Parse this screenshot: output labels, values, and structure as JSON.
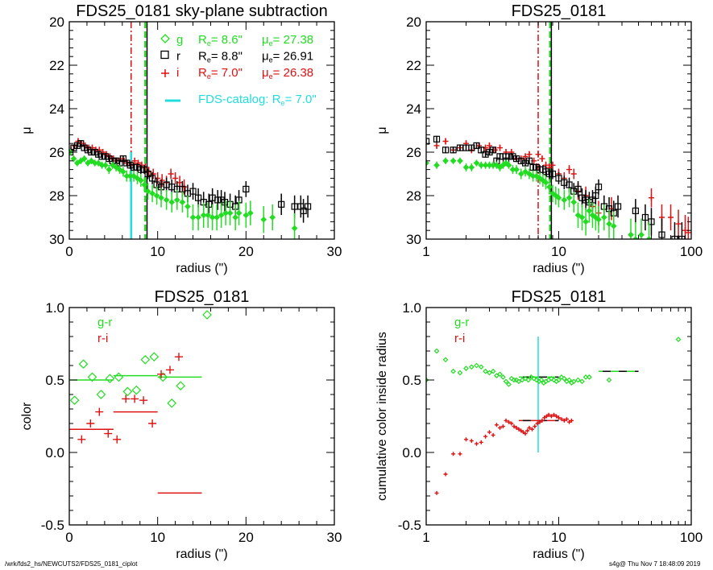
{
  "footer": {
    "left": "/wrk/fds2_hs/NEWCUTS2/FDS25_0181_ciplot",
    "right": "s4g@  Thu Nov  7 18:48:09 2019"
  },
  "colors": {
    "g": "#22dd22",
    "r": "#000000",
    "i": "#dd1111",
    "catalog": "#22dddd"
  },
  "chart_data": [
    {
      "id": "profile-linear",
      "type": "scatter",
      "title": "FDS25_0181 sky-plane subtraction",
      "xlabel": "radius (\")",
      "ylabel": "μ",
      "xscale": "linear",
      "xlim": [
        0,
        30
      ],
      "ylim": [
        30,
        20
      ],
      "xticks": [
        0,
        10,
        20,
        30
      ],
      "yticks": [
        20,
        22,
        24,
        26,
        28,
        30
      ],
      "legend": {
        "placement": "top-right",
        "entries": [
          {
            "band": "g",
            "symbol": "◇",
            "label": "g",
            "re": "8.6\"",
            "mue": "27.38"
          },
          {
            "band": "r",
            "symbol": "□",
            "label": "r",
            "re": "8.8\"",
            "mue": "26.91"
          },
          {
            "band": "i",
            "symbol": "+",
            "label": "i",
            "re": "7.0\"",
            "mue": "26.38"
          }
        ],
        "catalog": "FDS-catalog: R",
        "catalog_re": "7.0\"",
        "re_prefix": "R",
        "mue_prefix": "μ",
        "eq": "="
      },
      "vlines": [
        {
          "x": 7.0,
          "color": "i",
          "style": "dashdot"
        },
        {
          "x": 8.6,
          "color": "g",
          "style": "dashed"
        },
        {
          "x": 8.8,
          "color": "r",
          "style": "solid"
        },
        {
          "x": 7.0,
          "color": "catalog",
          "style": "solid",
          "ymin": 26.0,
          "ymax": 30
        }
      ],
      "series": [
        {
          "name": "i",
          "x": [
            0.2,
            0.6,
            1.0,
            1.4,
            1.8,
            2.2,
            2.6,
            3.0,
            3.4,
            3.8,
            4.2,
            4.6,
            5.0,
            5.4,
            5.8,
            6.2,
            6.6,
            7.0,
            7.4,
            7.8,
            8.2,
            8.6,
            9.0,
            9.5,
            10.0,
            10.5,
            11.0,
            11.5,
            12.0,
            12.5,
            13.0
          ],
          "y": [
            25.9,
            25.7,
            25.5,
            25.6,
            25.7,
            25.8,
            25.8,
            25.9,
            25.9,
            26.0,
            26.1,
            26.2,
            26.3,
            26.4,
            26.3,
            26.4,
            26.5,
            26.6,
            26.4,
            26.5,
            26.6,
            26.7,
            26.9,
            27.0,
            27.2,
            27.3,
            27.4,
            27.0,
            27.2,
            27.4,
            27.6
          ]
        },
        {
          "name": "r",
          "x": [
            0.1,
            0.5,
            0.9,
            1.3,
            1.7,
            2.1,
            2.5,
            2.9,
            3.3,
            3.7,
            4.1,
            4.5,
            4.9,
            5.3,
            5.7,
            6.1,
            6.5,
            6.9,
            7.3,
            7.7,
            8.1,
            8.5,
            8.9,
            9.4,
            9.9,
            10.4,
            11.0,
            11.6,
            12.2,
            12.8,
            13.4,
            14.0,
            14.6,
            15.2,
            15.8,
            16.2,
            16.8,
            17.2,
            17.6,
            18.2,
            18.8,
            19.2,
            20.0,
            24.0,
            25.5,
            26.2,
            26.5,
            27.0
          ],
          "y": [
            26.0,
            25.8,
            25.7,
            25.6,
            25.8,
            25.9,
            26.0,
            26.0,
            26.1,
            26.2,
            26.2,
            26.3,
            26.4,
            26.4,
            26.5,
            26.3,
            26.5,
            26.6,
            26.7,
            26.7,
            26.8,
            26.8,
            27.0,
            27.2,
            27.5,
            27.6,
            27.5,
            27.6,
            27.7,
            27.7,
            27.9,
            27.8,
            28.1,
            28.3,
            28.4,
            28.1,
            28.2,
            28.2,
            28.3,
            28.4,
            28.5,
            28.2,
            27.7,
            28.4,
            28.5,
            28.5,
            28.7,
            28.5
          ]
        },
        {
          "name": "g",
          "x": [
            0.1,
            0.5,
            0.9,
            1.3,
            1.7,
            2.1,
            2.5,
            2.9,
            3.3,
            3.7,
            4.1,
            4.5,
            4.9,
            5.3,
            5.7,
            6.1,
            6.5,
            6.9,
            7.3,
            7.7,
            8.1,
            8.5,
            8.9,
            9.4,
            9.9,
            10.4,
            11.0,
            11.6,
            12.2,
            12.8,
            13.4,
            14.0,
            14.6,
            15.2,
            15.7,
            16.2,
            16.7,
            17.2,
            17.7,
            18.2,
            18.8,
            19.2,
            20.0,
            20.5,
            22.0,
            23.0,
            25.5
          ],
          "y": [
            26.0,
            26.3,
            26.5,
            26.4,
            26.3,
            26.5,
            26.4,
            26.5,
            26.5,
            26.6,
            26.6,
            26.8,
            26.6,
            26.7,
            26.8,
            26.9,
            27.1,
            27.1,
            27.1,
            27.2,
            27.3,
            27.5,
            27.8,
            27.9,
            28.0,
            28.1,
            28.2,
            28.3,
            28.2,
            28.3,
            28.5,
            29.0,
            29.0,
            28.9,
            28.9,
            29.0,
            29.0,
            28.9,
            28.8,
            28.8,
            29.0,
            28.8,
            28.9,
            28.8,
            29.1,
            29.0,
            29.5
          ]
        }
      ]
    },
    {
      "id": "profile-log",
      "type": "scatter",
      "title": "FDS25_0181",
      "xlabel": "radius (\")",
      "ylabel": "μ",
      "xscale": "log",
      "xlim": [
        1,
        100
      ],
      "ylim": [
        30,
        20
      ],
      "xticks": [
        1,
        10,
        100
      ],
      "yticks": [
        20,
        22,
        24,
        26,
        28,
        30
      ],
      "vlines": [
        {
          "x": 7.0,
          "color": "i",
          "style": "dashdot"
        },
        {
          "x": 8.6,
          "color": "g",
          "style": "dashed"
        },
        {
          "x": 8.8,
          "color": "r",
          "style": "solid"
        }
      ],
      "series": [
        {
          "name": "i",
          "x": [
            1.2,
            1.4,
            1.6,
            1.8,
            2.0,
            2.2,
            2.5,
            2.8,
            3.0,
            3.3,
            3.6,
            4.0,
            4.4,
            4.8,
            5.2,
            5.6,
            6.0,
            6.5,
            7.0,
            7.5,
            8.0,
            8.5,
            9.0,
            10.0,
            11.0,
            12.0,
            13.0,
            14.0,
            16.0,
            18.0,
            20.0,
            25.0,
            50.0,
            60.0,
            70.0,
            80.0,
            90.0,
            95.0
          ],
          "y": [
            25.7,
            25.5,
            25.9,
            25.8,
            25.6,
            25.9,
            25.7,
            25.8,
            25.7,
            25.9,
            25.8,
            26.0,
            26.0,
            26.3,
            26.3,
            26.2,
            26.1,
            26.4,
            26.1,
            26.3,
            26.6,
            26.7,
            26.6,
            27.0,
            27.2,
            26.8,
            27.0,
            27.8,
            28.0,
            28.5,
            28.8,
            28.6,
            28.1,
            29.0,
            29.0,
            29.3,
            29.6,
            29.7
          ]
        },
        {
          "name": "r",
          "x": [
            1.0,
            1.2,
            1.4,
            1.6,
            1.8,
            2.0,
            2.2,
            2.4,
            2.6,
            2.8,
            3.0,
            3.2,
            3.4,
            3.6,
            3.8,
            4.0,
            4.2,
            4.5,
            4.8,
            5.2,
            5.6,
            6.0,
            6.4,
            6.8,
            7.2,
            7.6,
            8.0,
            8.5,
            9.0,
            10.0,
            11.0,
            12.0,
            13.0,
            14.0,
            15.0,
            16.0,
            17.0,
            18.0,
            19.0,
            20.0,
            22.0,
            24.0,
            26.0,
            28.0,
            38.0,
            45.0,
            50.0,
            60.0,
            75.0,
            85.0
          ],
          "y": [
            25.5,
            25.4,
            25.9,
            25.9,
            25.8,
            25.8,
            25.8,
            25.7,
            25.9,
            26.1,
            26.0,
            25.9,
            26.4,
            26.2,
            26.2,
            26.4,
            26.2,
            26.2,
            26.3,
            26.4,
            26.5,
            26.4,
            26.7,
            26.7,
            26.8,
            26.8,
            26.9,
            27.0,
            27.0,
            27.2,
            27.4,
            27.5,
            27.8,
            27.7,
            28.1,
            28.2,
            28.3,
            28.2,
            28.0,
            27.6,
            28.5,
            28.6,
            28.8,
            28.5,
            28.7,
            29.0,
            29.2,
            29.8,
            30.0,
            30.0
          ]
        },
        {
          "name": "g",
          "x": [
            1.0,
            1.2,
            1.4,
            1.6,
            1.8,
            2.0,
            2.2,
            2.4,
            2.6,
            2.8,
            3.0,
            3.2,
            3.4,
            3.6,
            3.8,
            4.0,
            4.2,
            4.5,
            4.8,
            5.2,
            5.6,
            6.0,
            6.4,
            6.8,
            7.2,
            7.6,
            8.0,
            8.5,
            9.0,
            9.5,
            10.0,
            11.0,
            12.0,
            13.0,
            14.0,
            15.0,
            16.0,
            17.0,
            18.0,
            19.0,
            20.0,
            22.0,
            24.0,
            26.0,
            35.0,
            38.0,
            42.0,
            48.0
          ],
          "y": [
            26.5,
            26.6,
            26.4,
            26.4,
            26.4,
            26.7,
            26.7,
            26.5,
            26.6,
            26.6,
            26.6,
            26.6,
            26.6,
            26.7,
            26.6,
            26.5,
            26.6,
            26.8,
            26.8,
            27.0,
            26.9,
            27.0,
            27.1,
            27.1,
            27.2,
            27.3,
            27.4,
            27.6,
            27.9,
            28.0,
            28.1,
            28.2,
            28.1,
            28.3,
            28.9,
            29.0,
            29.2,
            28.7,
            28.9,
            29.0,
            29.1,
            29.0,
            29.3,
            29.4,
            29.8,
            30.0,
            29.8,
            30.0
          ]
        }
      ]
    },
    {
      "id": "color-linear",
      "type": "scatter",
      "title": "FDS25_0181",
      "xlabel": "radius (\")",
      "ylabel": "color",
      "xscale": "linear",
      "xlim": [
        0,
        30
      ],
      "ylim": [
        -0.5,
        1.0
      ],
      "xticks": [
        0,
        10,
        20,
        30
      ],
      "yticks": [
        -0.5,
        0.0,
        0.5,
        1.0
      ],
      "yticklabels": [
        "-0.5",
        "0.0",
        "0.5",
        "1.0"
      ],
      "legend": {
        "placement": "top-left",
        "entries": [
          {
            "band": "g",
            "label": "g-r"
          },
          {
            "band": "i",
            "label": "r-i"
          }
        ]
      },
      "series": [
        {
          "name": "g-r",
          "symbol": "diamond",
          "x": [
            0.6,
            1.6,
            2.6,
            3.6,
            4.6,
            5.6,
            6.6,
            7.6,
            8.6,
            9.6,
            10.6,
            11.6,
            12.6,
            15.6
          ],
          "y": [
            0.36,
            0.61,
            0.52,
            0.4,
            0.51,
            0.52,
            0.42,
            0.43,
            0.64,
            0.66,
            0.52,
            0.34,
            0.46,
            0.95
          ]
        },
        {
          "name": "r-i",
          "symbol": "plus",
          "x": [
            1.4,
            2.4,
            3.4,
            4.4,
            5.4,
            6.4,
            7.4,
            8.4,
            9.4,
            10.4,
            11.4,
            12.4
          ],
          "y": [
            0.09,
            0.2,
            0.28,
            0.13,
            0.09,
            0.37,
            0.37,
            0.36,
            0.2,
            0.54,
            0.57,
            0.66
          ]
        }
      ],
      "segments": [
        {
          "band": "g",
          "x0": 0,
          "x1": 5,
          "y": 0.5
        },
        {
          "band": "g",
          "x0": 5,
          "x1": 10,
          "y": 0.53
        },
        {
          "band": "g",
          "x0": 10,
          "x1": 15,
          "y": 0.52
        },
        {
          "band": "i",
          "x0": 0,
          "x1": 5,
          "y": 0.16
        },
        {
          "band": "i",
          "x0": 5,
          "x1": 10,
          "y": 0.28
        },
        {
          "band": "i",
          "x0": 10,
          "x1": 15,
          "y": -0.28
        }
      ]
    },
    {
      "id": "color-cumulative",
      "type": "scatter",
      "title": "FDS25_0181",
      "xlabel": "radius (\")",
      "ylabel": "cumulative color inside radius",
      "xscale": "log",
      "xlim": [
        1,
        100
      ],
      "ylim": [
        -0.5,
        1.0
      ],
      "xticks": [
        1,
        10,
        100
      ],
      "yticks": [
        -0.5,
        0.0,
        0.5,
        1.0
      ],
      "yticklabels": [
        "-0.5",
        "0.0",
        "0.5",
        "1.0"
      ],
      "legend": {
        "placement": "top-left",
        "entries": [
          {
            "band": "g",
            "label": "g-r"
          },
          {
            "band": "i",
            "label": "r-i"
          }
        ]
      },
      "catalog_line": {
        "x": 7.0,
        "ymin": 0.0,
        "ymax": 0.8
      },
      "series": [
        {
          "name": "g-r",
          "symbol": "diamond",
          "x": [
            1.0,
            1.2,
            1.4,
            1.6,
            1.8,
            2.0,
            2.2,
            2.4,
            2.6,
            2.8,
            3.0,
            3.2,
            3.4,
            3.6,
            3.8,
            4.0,
            4.2,
            4.4,
            4.6,
            4.8,
            5.0,
            5.3,
            5.6,
            5.9,
            6.2,
            6.5,
            6.8,
            7.1,
            7.4,
            7.7,
            8.0,
            8.4,
            8.8,
            9.2,
            9.6,
            10.0,
            10.5,
            11.0,
            11.5,
            12.0,
            12.5,
            13.0,
            14.0,
            15.0,
            16.0,
            17.0,
            24.0,
            80.0
          ],
          "y": [
            0.5,
            0.7,
            0.64,
            0.56,
            0.55,
            0.58,
            0.59,
            0.6,
            0.59,
            0.56,
            0.55,
            0.56,
            0.53,
            0.54,
            0.52,
            0.49,
            0.47,
            0.51,
            0.5,
            0.5,
            0.49,
            0.5,
            0.51,
            0.5,
            0.52,
            0.51,
            0.5,
            0.49,
            0.5,
            0.48,
            0.49,
            0.5,
            0.51,
            0.5,
            0.49,
            0.5,
            0.52,
            0.51,
            0.49,
            0.5,
            0.48,
            0.49,
            0.5,
            0.49,
            0.52,
            0.52,
            0.5,
            0.78
          ]
        },
        {
          "name": "r-i",
          "symbol": "plus",
          "x": [
            1.2,
            1.4,
            1.6,
            1.8,
            2.0,
            2.2,
            2.4,
            2.6,
            2.8,
            3.0,
            3.2,
            3.4,
            3.6,
            3.8,
            4.0,
            4.2,
            4.4,
            4.6,
            4.8,
            5.0,
            5.2,
            5.4,
            5.6,
            5.8,
            6.0,
            6.3,
            6.6,
            6.9,
            7.2,
            7.5,
            7.8,
            8.1,
            8.4,
            8.8,
            9.2,
            9.6,
            10.0,
            10.5,
            11.0,
            11.5,
            12.0,
            12.5
          ],
          "y": [
            -0.28,
            -0.15,
            -0.01,
            -0.01,
            0.09,
            0.08,
            0.06,
            0.07,
            0.11,
            0.14,
            0.12,
            0.19,
            0.17,
            0.18,
            0.22,
            0.21,
            0.2,
            0.18,
            0.17,
            0.16,
            0.15,
            0.14,
            0.13,
            0.15,
            0.17,
            0.16,
            0.18,
            0.2,
            0.21,
            0.22,
            0.24,
            0.25,
            0.26,
            0.25,
            0.26,
            0.25,
            0.24,
            0.23,
            0.22,
            0.23,
            0.21,
            0.22
          ]
        }
      ],
      "segments": [
        {
          "band": "g",
          "x0": 5,
          "x1": 10,
          "y": 0.52,
          "dash": true
        },
        {
          "band": "g",
          "x0": 20,
          "x1": 40,
          "y": 0.56,
          "dash": true
        },
        {
          "band": "i",
          "x0": 5,
          "x1": 10,
          "y": 0.22,
          "dash": true
        }
      ]
    }
  ]
}
